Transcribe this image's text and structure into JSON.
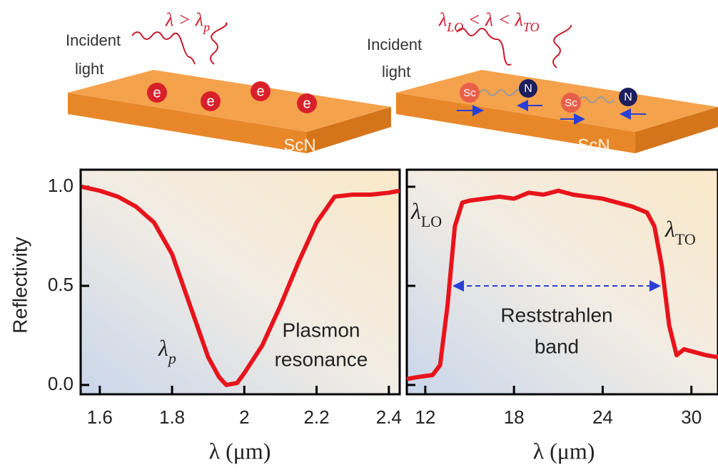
{
  "chart_data": [
    {
      "type": "line",
      "ylabel": "Reflectivity",
      "xlabel": "λ (μm)",
      "xlim": [
        1.547,
        2.43
      ],
      "xticks": [
        1.6,
        1.8,
        2.0,
        2.2,
        2.4
      ],
      "ylim": [
        -0.047,
        1.086
      ],
      "yticks": [
        0.0,
        0.5,
        1.0
      ],
      "x": [
        1.55,
        1.6,
        1.65,
        1.7,
        1.75,
        1.8,
        1.85,
        1.9,
        1.93,
        1.95,
        1.98,
        2.0,
        2.05,
        2.1,
        2.15,
        2.2,
        2.25,
        2.3,
        2.35,
        2.4,
        2.43
      ],
      "series": [
        {
          "color": "#e8141c",
          "values": [
            1.0,
            0.98,
            0.95,
            0.9,
            0.82,
            0.66,
            0.4,
            0.14,
            0.04,
            0.0,
            0.01,
            0.06,
            0.2,
            0.4,
            0.62,
            0.82,
            0.95,
            0.96,
            0.96,
            0.97,
            0.98
          ]
        }
      ],
      "annotations": [
        {
          "symbol": "λ",
          "sub": "p"
        },
        {
          "lines": [
            "Plasmon",
            "resonance"
          ]
        }
      ],
      "illustration": {
        "wave_label": [
          {
            "text": "λ > λ"
          },
          {
            "sub": "p"
          }
        ],
        "incident_light": [
          "Incident",
          "light"
        ],
        "substrate": "ScN",
        "particles": [
          "e"
        ]
      }
    },
    {
      "type": "line",
      "xlabel": "λ (μm)",
      "xlim": [
        10.75,
        31.8
      ],
      "xticks": [
        12,
        18,
        24,
        30
      ],
      "ylim": [
        -0.047,
        1.086
      ],
      "yticks": [
        0.0,
        0.5,
        1.0
      ],
      "x": [
        10.75,
        11.5,
        12.5,
        13,
        13.5,
        14,
        14.5,
        15,
        16,
        17,
        18,
        19,
        20,
        21,
        22,
        23,
        24,
        25,
        26,
        27,
        27.5,
        28,
        28.5,
        29,
        29.5,
        30,
        31,
        31.8
      ],
      "series": [
        {
          "color": "#e8141c",
          "values": [
            0.03,
            0.04,
            0.05,
            0.1,
            0.4,
            0.8,
            0.92,
            0.93,
            0.94,
            0.95,
            0.94,
            0.97,
            0.96,
            0.98,
            0.96,
            0.95,
            0.94,
            0.92,
            0.9,
            0.87,
            0.8,
            0.6,
            0.3,
            0.15,
            0.18,
            0.17,
            0.15,
            0.14
          ]
        }
      ],
      "annotations": [
        {
          "symbol": "λ",
          "sub": "LO"
        },
        {
          "symbol": "λ",
          "sub": "TO"
        },
        {
          "lines": [
            "Reststrahlen",
            "band"
          ]
        }
      ],
      "illustration": {
        "wave_label": [
          {
            "text": "λ"
          },
          {
            "sub": "LO"
          },
          {
            "text": " < λ < λ"
          },
          {
            "sub": "TO"
          }
        ],
        "incident_light": [
          "Incident",
          "light"
        ],
        "substrate": "ScN",
        "particles": [
          "Sc",
          "N"
        ]
      }
    }
  ]
}
